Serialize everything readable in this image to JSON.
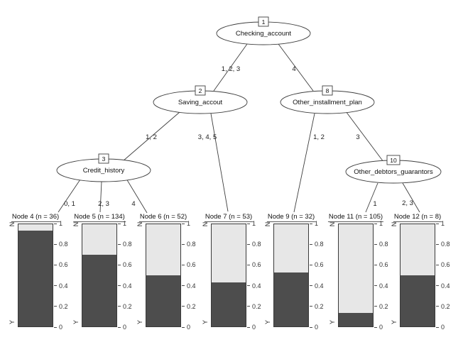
{
  "figure": {
    "background": "#ffffff",
    "bar_dark_color": "#4d4d4d",
    "bar_light_color": "#e7e7e7"
  },
  "tree": {
    "inner_nodes": [
      {
        "id": "1",
        "label": "Checking_account"
      },
      {
        "id": "2",
        "label": "Saving_accout"
      },
      {
        "id": "8",
        "label": "Other_installment_plan"
      },
      {
        "id": "3",
        "label": "Credit_history"
      },
      {
        "id": "10",
        "label": "Other_debtors_guarantors"
      }
    ],
    "edges": [
      {
        "from": "1",
        "to": "2",
        "label": "1, 2, 3"
      },
      {
        "from": "1",
        "to": "8",
        "label": "4"
      },
      {
        "from": "2",
        "to": "3",
        "label": "1, 2"
      },
      {
        "from": "2",
        "to": "7",
        "label": "3, 4, 5"
      },
      {
        "from": "3",
        "to": "4",
        "label": "0, 1"
      },
      {
        "from": "3",
        "to": "5",
        "label": "2, 3"
      },
      {
        "from": "3",
        "to": "6",
        "label": "4"
      },
      {
        "from": "8",
        "to": "9",
        "label": "1, 2"
      },
      {
        "from": "8",
        "to": "10",
        "label": "3"
      },
      {
        "from": "10",
        "to": "11",
        "label": "1"
      },
      {
        "from": "10",
        "to": "12",
        "label": "2, 3"
      }
    ],
    "terminal_nodes": [
      {
        "title": "Node 4 (n = 36)",
        "n": 36,
        "p_dark": 0.94,
        "p_light": 0.06
      },
      {
        "title": "Node 5 (n = 134)",
        "n": 134,
        "p_dark": 0.7,
        "p_light": 0.3
      },
      {
        "title": "Node 6 (n = 52)",
        "n": 52,
        "p_dark": 0.5,
        "p_light": 0.5
      },
      {
        "title": "Node 7 (n = 53)",
        "n": 53,
        "p_dark": 0.43,
        "p_light": 0.57
      },
      {
        "title": "Node 9 (n = 32)",
        "n": 32,
        "p_dark": 0.53,
        "p_light": 0.47
      },
      {
        "title": "Node 11 (n = 105)",
        "n": 105,
        "p_dark": 0.13,
        "p_light": 0.87
      },
      {
        "title": "Node 12 (n = 8)",
        "n": 8,
        "p_dark": 0.5,
        "p_light": 0.5
      }
    ]
  },
  "bar_axis": {
    "top_category": "N",
    "bottom_category": "Y",
    "ticks": [
      "0",
      "0.2",
      "0.4",
      "0.6",
      "0.8",
      "1"
    ]
  },
  "chart_data": {
    "type": "bar",
    "subtype": "conditional-inference-tree-with-stacked-terminal-bars",
    "title": "",
    "xlabel": "",
    "ylabel": "",
    "ylim": [
      0,
      1
    ],
    "yticks": [
      0,
      0.2,
      0.4,
      0.6,
      0.8,
      1
    ],
    "legend_position": "none",
    "grid": false,
    "tree_splits": [
      {
        "node": 1,
        "variable": "Checking_account",
        "branches": [
          {
            "values": "1, 2, 3",
            "child": 2
          },
          {
            "values": "4",
            "child": 8
          }
        ]
      },
      {
        "node": 2,
        "variable": "Saving_accout",
        "branches": [
          {
            "values": "1, 2",
            "child": 3
          },
          {
            "values": "3, 4, 5",
            "child": 7
          }
        ]
      },
      {
        "node": 3,
        "variable": "Credit_history",
        "branches": [
          {
            "values": "0, 1",
            "child": 4
          },
          {
            "values": "2, 3",
            "child": 5
          },
          {
            "values": "4",
            "child": 6
          }
        ]
      },
      {
        "node": 8,
        "variable": "Other_installment_plan",
        "branches": [
          {
            "values": "1, 2",
            "child": 9
          },
          {
            "values": "3",
            "child": 10
          }
        ]
      },
      {
        "node": 10,
        "variable": "Other_debtors_guarantors",
        "branches": [
          {
            "values": "1",
            "child": 11
          },
          {
            "values": "2, 3",
            "child": 12
          }
        ]
      }
    ],
    "categories": [
      "Node 4 (n = 36)",
      "Node 5 (n = 134)",
      "Node 6 (n = 52)",
      "Node 7 (n = 53)",
      "Node 9 (n = 32)",
      "Node 11 (n = 105)",
      "Node 12 (n = 8)"
    ],
    "series": [
      {
        "name": "Y (dark, bottom segment)",
        "values": [
          0.94,
          0.7,
          0.5,
          0.43,
          0.53,
          0.13,
          0.5
        ]
      },
      {
        "name": "N (light, top segment)",
        "values": [
          0.06,
          0.3,
          0.5,
          0.57,
          0.47,
          0.87,
          0.5
        ]
      }
    ]
  }
}
